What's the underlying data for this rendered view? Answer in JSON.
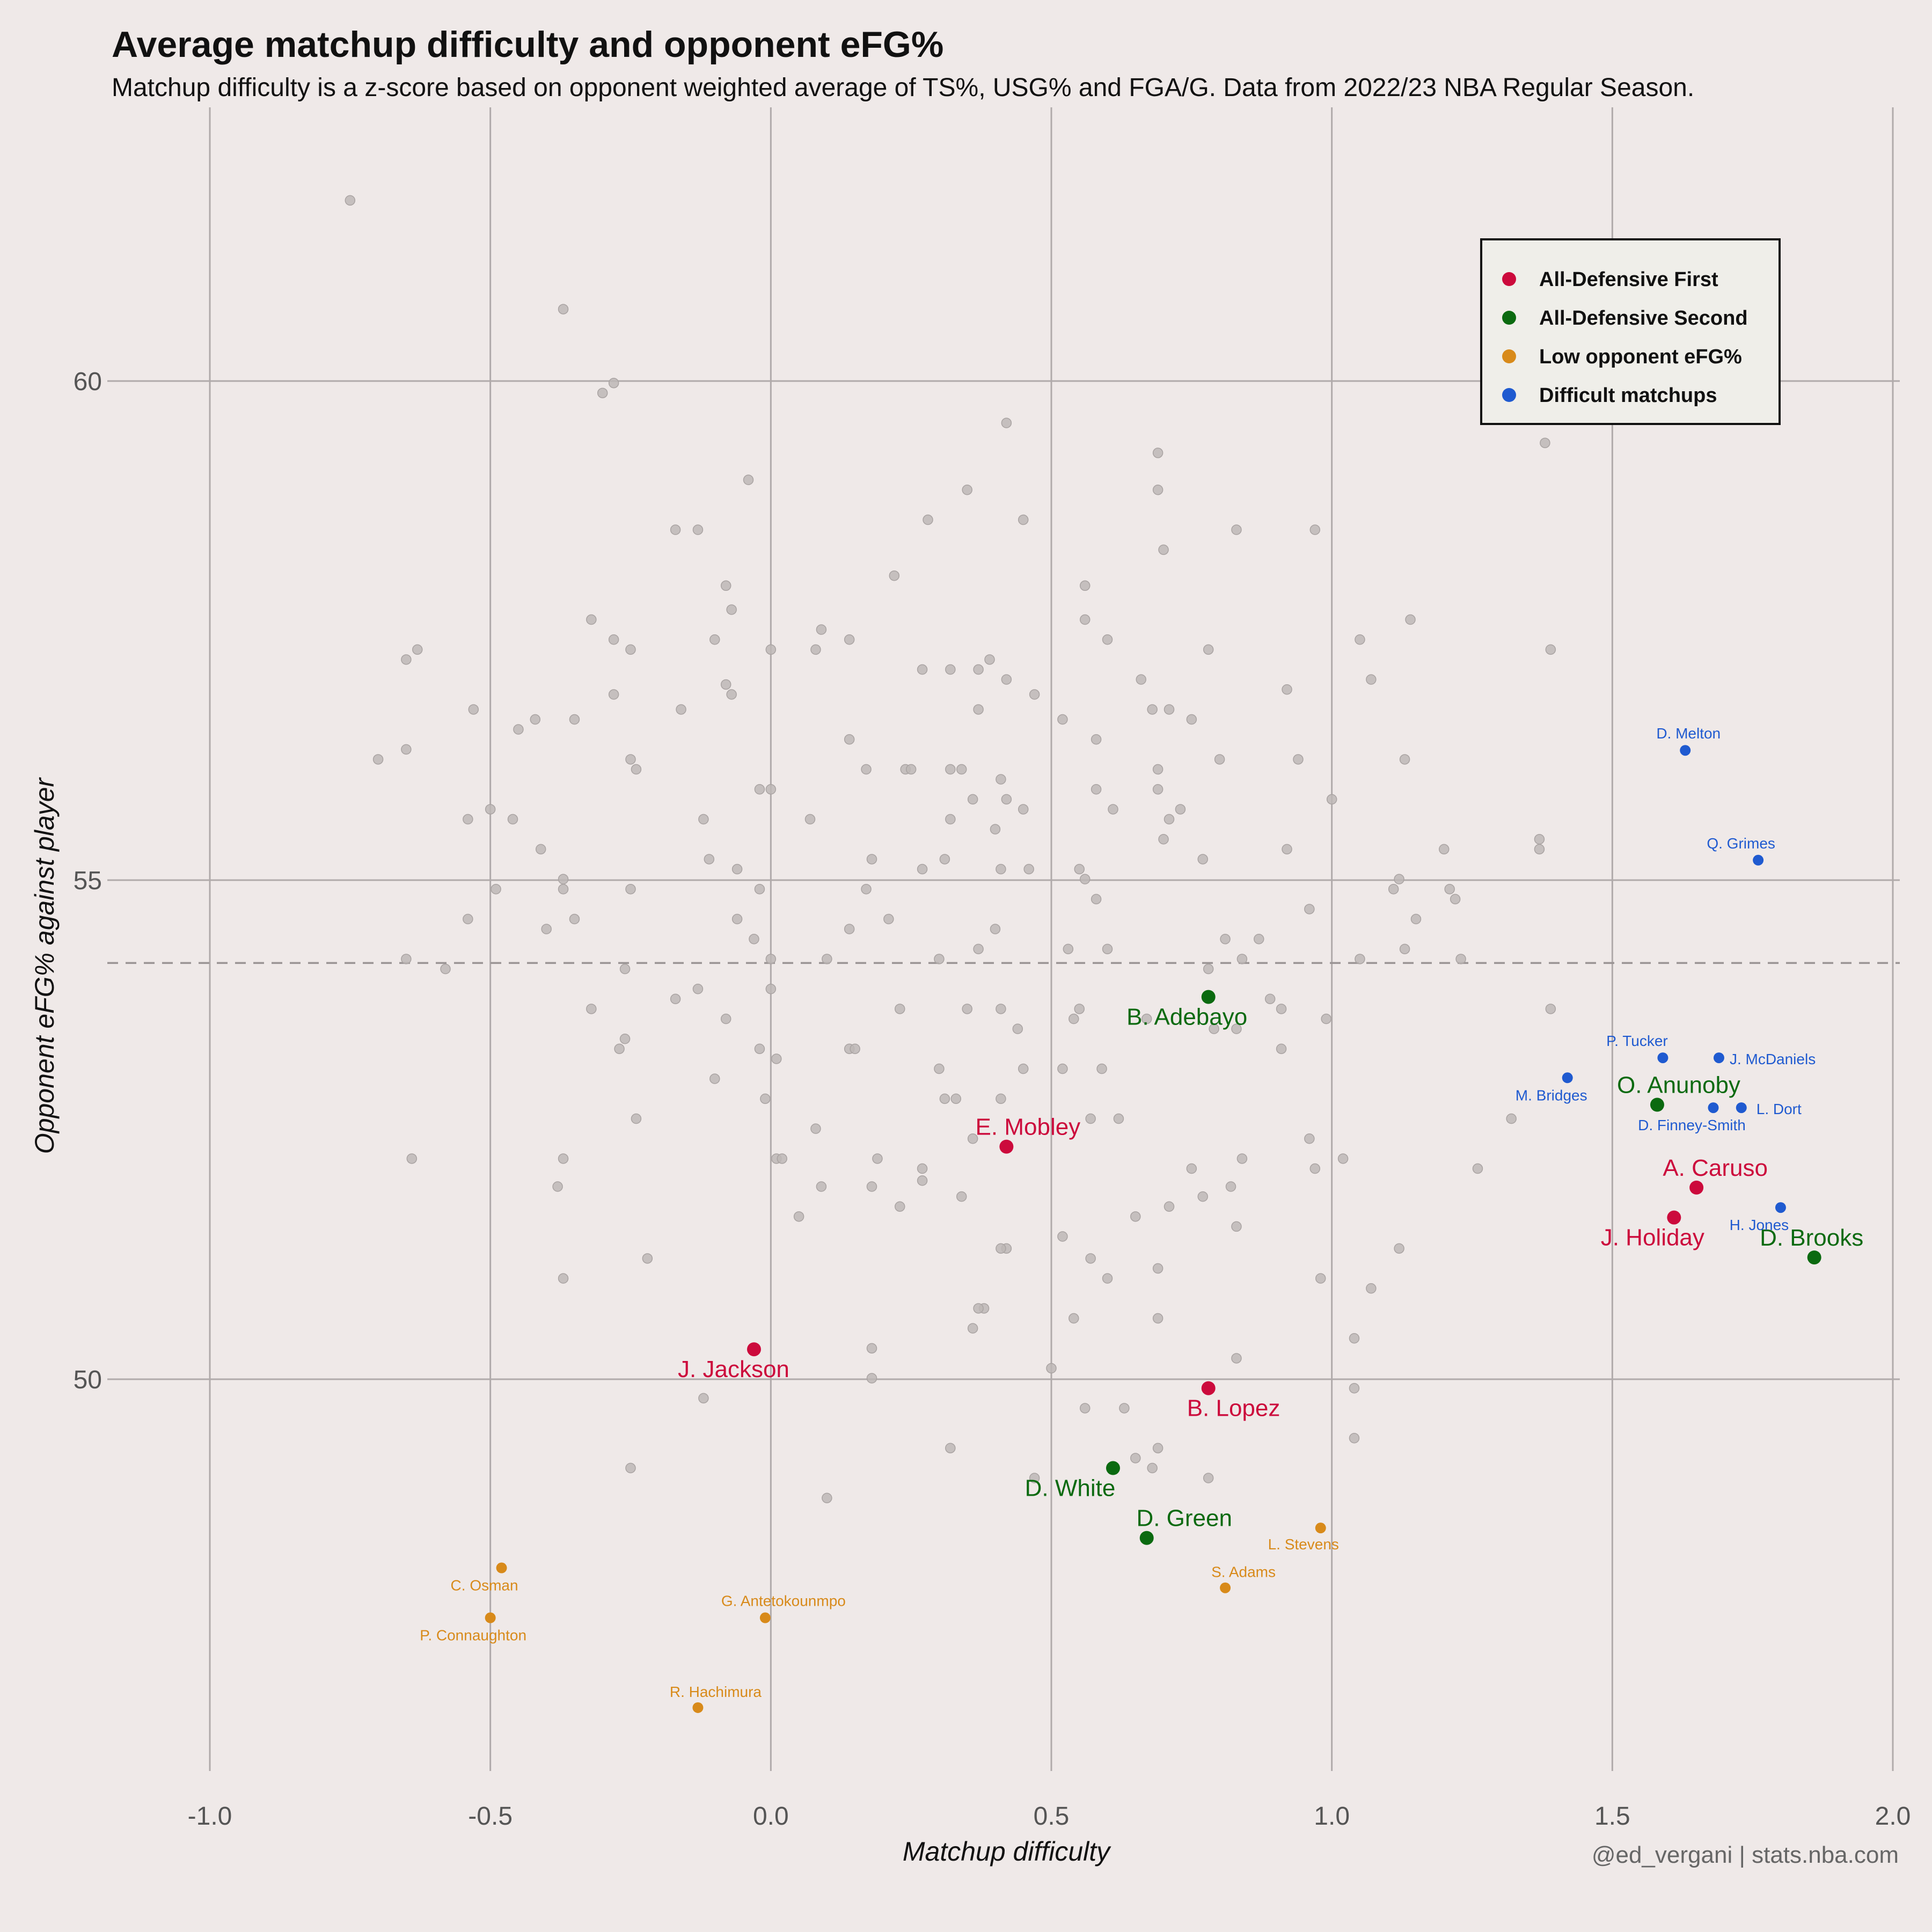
{
  "title": "Average matchup difficulty and opponent eFG%",
  "subtitle": "Matchup difficulty is a z-score based on opponent weighted average of TS%, USG% and FGA/G. Data from 2022/23 NBA Regular Season.",
  "credit": "@ed_vergani | stats.nba.com",
  "colors": {
    "background": "#efe9e8",
    "grid": "#b0aaaa",
    "background_points": "#bdb7b6",
    "all_defensive_first": "#cc0a3c",
    "all_defensive_second": "#0b6a10",
    "low_opponent_efg": "#d88a1a",
    "difficult_matchups": "#1f5ad0"
  },
  "chart_data": {
    "type": "scatter",
    "xlabel": "Matchup difficulty",
    "ylabel": "Opponent eFG% against player",
    "xlim": [
      -1.0,
      2.0
    ],
    "ylim": [
      46.0,
      61.5
    ],
    "xticks": [
      -1.0,
      -0.5,
      0.0,
      0.5,
      1.0,
      1.5,
      2.0
    ],
    "xtick_labels": [
      "-1.0",
      "-0.5",
      "0.0",
      "0.5",
      "1.0",
      "1.5",
      "2.0"
    ],
    "yticks": [
      50,
      55,
      60
    ],
    "ytick_labels": [
      "50",
      "55",
      "60"
    ],
    "grid": true,
    "reference_line_y": 54.17,
    "legend_position": "top-right",
    "legend": [
      {
        "label": "All-Defensive First",
        "color": "#cc0a3c"
      },
      {
        "label": "All-Defensive Second",
        "color": "#0b6a10"
      },
      {
        "label": "Low opponent eFG%",
        "color": "#d88a1a"
      },
      {
        "label": "Difficult matchups",
        "color": "#1f5ad0"
      }
    ],
    "highlighted": [
      {
        "name": "E. Mobley",
        "group": "All-Defensive First",
        "x": 0.42,
        "y": 52.33
      },
      {
        "name": "J. Jackson",
        "group": "All-Defensive First",
        "x": -0.03,
        "y": 50.3
      },
      {
        "name": "B. Lopez",
        "group": "All-Defensive First",
        "x": 0.78,
        "y": 49.91
      },
      {
        "name": "A. Caruso",
        "group": "All-Defensive First",
        "x": 1.65,
        "y": 51.92
      },
      {
        "name": "J. Holiday",
        "group": "All-Defensive First",
        "x": 1.61,
        "y": 51.62
      },
      {
        "name": "B. Adebayo",
        "group": "All-Defensive Second",
        "x": 0.78,
        "y": 53.83
      },
      {
        "name": "D. White",
        "group": "All-Defensive Second",
        "x": 0.61,
        "y": 49.11
      },
      {
        "name": "D. Green",
        "group": "All-Defensive Second",
        "x": 0.67,
        "y": 48.41
      },
      {
        "name": "O. Anunoby",
        "group": "All-Defensive Second",
        "x": 1.58,
        "y": 52.75
      },
      {
        "name": "D. Brooks",
        "group": "All-Defensive Second",
        "x": 1.86,
        "y": 51.22
      },
      {
        "name": "C. Osman",
        "group": "Low opponent eFG%",
        "x": -0.48,
        "y": 48.11
      },
      {
        "name": "P. Connaughton",
        "group": "Low opponent eFG%",
        "x": -0.5,
        "y": 47.61
      },
      {
        "name": "G. Antetokounmpo",
        "group": "Low opponent eFG%",
        "x": -0.01,
        "y": 47.61
      },
      {
        "name": "R. Hachimura",
        "group": "Low opponent eFG%",
        "x": -0.13,
        "y": 46.71
      },
      {
        "name": "L. Stevens",
        "group": "Low opponent eFG%",
        "x": 0.98,
        "y": 48.51
      },
      {
        "name": "S. Adams",
        "group": "Low opponent eFG%",
        "x": 0.81,
        "y": 47.91
      },
      {
        "name": "D. Melton",
        "group": "Difficult matchups",
        "x": 1.63,
        "y": 56.3
      },
      {
        "name": "Q. Grimes",
        "group": "Difficult matchups",
        "x": 1.76,
        "y": 55.2
      },
      {
        "name": "P. Tucker",
        "group": "Difficult matchups",
        "x": 1.59,
        "y": 53.22
      },
      {
        "name": "J. McDaniels",
        "group": "Difficult matchups",
        "x": 1.69,
        "y": 53.22
      },
      {
        "name": "M. Bridges",
        "group": "Difficult matchups",
        "x": 1.42,
        "y": 53.02
      },
      {
        "name": "D. Finney-Smith",
        "group": "Difficult matchups",
        "x": 1.68,
        "y": 52.72
      },
      {
        "name": "L. Dort",
        "group": "Difficult matchups",
        "x": 1.73,
        "y": 52.72
      },
      {
        "name": "H. Jones",
        "group": "Difficult matchups",
        "x": 1.8,
        "y": 51.72
      }
    ],
    "background_points": [
      [
        -0.75,
        61.81
      ],
      [
        -0.37,
        60.72
      ],
      [
        -0.28,
        59.98
      ],
      [
        -0.3,
        59.88
      ],
      [
        0.42,
        59.58
      ],
      [
        0.69,
        59.28
      ],
      [
        1.38,
        59.38
      ],
      [
        -0.04,
        59.01
      ],
      [
        0.35,
        58.91
      ],
      [
        0.69,
        58.91
      ],
      [
        0.28,
        58.61
      ],
      [
        0.45,
        58.61
      ],
      [
        -0.17,
        58.51
      ],
      [
        -0.13,
        58.51
      ],
      [
        0.97,
        58.51
      ],
      [
        0.83,
        58.51
      ],
      [
        0.7,
        58.31
      ],
      [
        0.22,
        58.05
      ],
      [
        -0.08,
        57.95
      ],
      [
        0.56,
        57.95
      ],
      [
        -0.07,
        57.71
      ],
      [
        -0.32,
        57.61
      ],
      [
        0.56,
        57.61
      ],
      [
        1.14,
        57.61
      ],
      [
        0.09,
        57.51
      ],
      [
        -0.28,
        57.41
      ],
      [
        -0.1,
        57.41
      ],
      [
        0.14,
        57.41
      ],
      [
        0.6,
        57.41
      ],
      [
        1.05,
        57.41
      ],
      [
        -0.63,
        57.31
      ],
      [
        -0.25,
        57.31
      ],
      [
        0.0,
        57.31
      ],
      [
        0.08,
        57.31
      ],
      [
        0.78,
        57.31
      ],
      [
        1.39,
        57.31
      ],
      [
        -0.65,
        57.21
      ],
      [
        0.39,
        57.21
      ],
      [
        0.27,
        57.11
      ],
      [
        0.32,
        57.11
      ],
      [
        0.37,
        57.11
      ],
      [
        0.42,
        57.01
      ],
      [
        0.66,
        57.01
      ],
      [
        1.07,
        57.01
      ],
      [
        -0.08,
        56.96
      ],
      [
        -0.07,
        56.86
      ],
      [
        -0.28,
        56.86
      ],
      [
        0.47,
        56.86
      ],
      [
        0.92,
        56.91
      ],
      [
        0.37,
        56.71
      ],
      [
        -0.53,
        56.71
      ],
      [
        -0.16,
        56.71
      ],
      [
        0.68,
        56.71
      ],
      [
        0.71,
        56.71
      ],
      [
        -0.42,
        56.61
      ],
      [
        -0.35,
        56.61
      ],
      [
        0.52,
        56.61
      ],
      [
        0.75,
        56.61
      ],
      [
        -0.45,
        56.51
      ],
      [
        0.58,
        56.41
      ],
      [
        0.14,
        56.41
      ],
      [
        -0.65,
        56.31
      ],
      [
        -0.7,
        56.21
      ],
      [
        -0.25,
        56.21
      ],
      [
        0.94,
        56.21
      ],
      [
        1.13,
        56.21
      ],
      [
        0.8,
        56.21
      ],
      [
        -0.24,
        56.11
      ],
      [
        0.17,
        56.11
      ],
      [
        0.24,
        56.11
      ],
      [
        0.25,
        56.11
      ],
      [
        0.32,
        56.11
      ],
      [
        0.34,
        56.11
      ],
      [
        0.69,
        56.11
      ],
      [
        0.41,
        56.01
      ],
      [
        -0.02,
        55.91
      ],
      [
        0.0,
        55.91
      ],
      [
        0.58,
        55.91
      ],
      [
        0.69,
        55.91
      ],
      [
        0.36,
        55.81
      ],
      [
        0.42,
        55.81
      ],
      [
        1.0,
        55.81
      ],
      [
        -0.5,
        55.71
      ],
      [
        0.45,
        55.71
      ],
      [
        0.61,
        55.71
      ],
      [
        0.73,
        55.71
      ],
      [
        -0.54,
        55.61
      ],
      [
        -0.46,
        55.61
      ],
      [
        -0.12,
        55.61
      ],
      [
        0.07,
        55.61
      ],
      [
        0.32,
        55.61
      ],
      [
        0.71,
        55.61
      ],
      [
        0.4,
        55.51
      ],
      [
        0.7,
        55.41
      ],
      [
        1.37,
        55.41
      ],
      [
        -0.41,
        55.31
      ],
      [
        0.92,
        55.31
      ],
      [
        1.37,
        55.31
      ],
      [
        1.2,
        55.31
      ],
      [
        -0.11,
        55.21
      ],
      [
        0.18,
        55.21
      ],
      [
        0.31,
        55.21
      ],
      [
        0.77,
        55.21
      ],
      [
        -0.06,
        55.11
      ],
      [
        0.27,
        55.11
      ],
      [
        0.41,
        55.11
      ],
      [
        0.46,
        55.11
      ],
      [
        0.55,
        55.11
      ],
      [
        -0.37,
        55.01
      ],
      [
        1.12,
        55.01
      ],
      [
        0.56,
        55.01
      ],
      [
        -0.49,
        54.91
      ],
      [
        -0.37,
        54.91
      ],
      [
        -0.25,
        54.91
      ],
      [
        -0.02,
        54.91
      ],
      [
        0.17,
        54.91
      ],
      [
        1.11,
        54.91
      ],
      [
        1.21,
        54.91
      ],
      [
        1.22,
        54.81
      ],
      [
        0.58,
        54.81
      ],
      [
        0.96,
        54.71
      ],
      [
        -0.35,
        54.61
      ],
      [
        -0.54,
        54.61
      ],
      [
        0.21,
        54.61
      ],
      [
        1.15,
        54.61
      ],
      [
        -0.06,
        54.61
      ],
      [
        -0.4,
        54.51
      ],
      [
        0.14,
        54.51
      ],
      [
        0.4,
        54.51
      ],
      [
        -0.03,
        54.41
      ],
      [
        0.81,
        54.41
      ],
      [
        0.87,
        54.41
      ],
      [
        0.37,
        54.31
      ],
      [
        0.53,
        54.31
      ],
      [
        0.6,
        54.31
      ],
      [
        1.13,
        54.31
      ],
      [
        -0.65,
        54.21
      ],
      [
        0.0,
        54.21
      ],
      [
        0.1,
        54.21
      ],
      [
        0.3,
        54.21
      ],
      [
        0.84,
        54.21
      ],
      [
        1.05,
        54.21
      ],
      [
        1.23,
        54.21
      ],
      [
        -0.58,
        54.11
      ],
      [
        -0.26,
        54.11
      ],
      [
        0.78,
        54.11
      ],
      [
        -0.13,
        53.91
      ],
      [
        0.0,
        53.91
      ],
      [
        -0.17,
        53.81
      ],
      [
        0.89,
        53.81
      ],
      [
        0.41,
        53.71
      ],
      [
        0.55,
        53.71
      ],
      [
        0.23,
        53.71
      ],
      [
        0.35,
        53.71
      ],
      [
        0.91,
        53.71
      ],
      [
        1.39,
        53.71
      ],
      [
        -0.32,
        53.71
      ],
      [
        -0.08,
        53.61
      ],
      [
        0.67,
        53.61
      ],
      [
        0.54,
        53.61
      ],
      [
        0.99,
        53.61
      ],
      [
        0.44,
        53.51
      ],
      [
        0.79,
        53.51
      ],
      [
        0.83,
        53.51
      ],
      [
        -0.26,
        53.41
      ],
      [
        -0.27,
        53.31
      ],
      [
        0.14,
        53.31
      ],
      [
        0.15,
        53.31
      ],
      [
        -0.02,
        53.31
      ],
      [
        0.91,
        53.31
      ],
      [
        0.01,
        53.21
      ],
      [
        0.3,
        53.11
      ],
      [
        0.45,
        53.11
      ],
      [
        0.52,
        53.11
      ],
      [
        0.59,
        53.11
      ],
      [
        -0.1,
        53.01
      ],
      [
        0.31,
        52.81
      ],
      [
        0.33,
        52.81
      ],
      [
        0.41,
        52.81
      ],
      [
        -0.01,
        52.81
      ],
      [
        1.32,
        52.61
      ],
      [
        0.62,
        52.61
      ],
      [
        -0.24,
        52.61
      ],
      [
        0.57,
        52.61
      ],
      [
        0.08,
        52.51
      ],
      [
        0.36,
        52.41
      ],
      [
        0.96,
        52.41
      ],
      [
        -0.64,
        52.21
      ],
      [
        -0.37,
        52.21
      ],
      [
        0.01,
        52.21
      ],
      [
        0.02,
        52.21
      ],
      [
        0.19,
        52.21
      ],
      [
        0.84,
        52.21
      ],
      [
        1.02,
        52.21
      ],
      [
        0.27,
        52.11
      ],
      [
        0.75,
        52.11
      ],
      [
        0.97,
        52.11
      ],
      [
        1.26,
        52.11
      ],
      [
        0.27,
        51.99
      ],
      [
        -0.38,
        51.93
      ],
      [
        0.09,
        51.93
      ],
      [
        0.18,
        51.93
      ],
      [
        0.82,
        51.93
      ],
      [
        0.34,
        51.83
      ],
      [
        0.77,
        51.83
      ],
      [
        0.23,
        51.73
      ],
      [
        0.71,
        51.73
      ],
      [
        0.05,
        51.63
      ],
      [
        0.65,
        51.63
      ],
      [
        0.83,
        51.53
      ],
      [
        0.52,
        51.43
      ],
      [
        0.42,
        51.31
      ],
      [
        0.41,
        51.31
      ],
      [
        1.12,
        51.31
      ],
      [
        0.57,
        51.21
      ],
      [
        -0.22,
        51.21
      ],
      [
        0.69,
        51.11
      ],
      [
        -0.37,
        51.01
      ],
      [
        0.6,
        51.01
      ],
      [
        0.98,
        51.01
      ],
      [
        1.07,
        50.91
      ],
      [
        0.38,
        50.71
      ],
      [
        0.37,
        50.71
      ],
      [
        0.54,
        50.61
      ],
      [
        0.69,
        50.61
      ],
      [
        0.36,
        50.51
      ],
      [
        1.04,
        50.41
      ],
      [
        0.18,
        50.31
      ],
      [
        0.83,
        50.21
      ],
      [
        0.5,
        50.11
      ],
      [
        0.18,
        50.01
      ],
      [
        1.04,
        49.91
      ],
      [
        -0.12,
        49.81
      ],
      [
        0.56,
        49.71
      ],
      [
        0.63,
        49.71
      ],
      [
        1.04,
        49.41
      ],
      [
        0.69,
        49.31
      ],
      [
        0.32,
        49.31
      ],
      [
        0.65,
        49.21
      ],
      [
        -0.25,
        49.11
      ],
      [
        0.68,
        49.11
      ],
      [
        0.47,
        49.01
      ],
      [
        0.78,
        49.01
      ],
      [
        0.1,
        48.81
      ]
    ]
  }
}
